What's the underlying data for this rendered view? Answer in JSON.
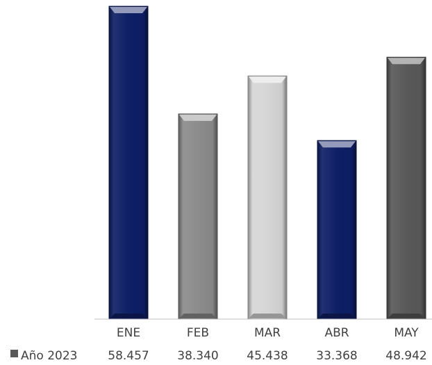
{
  "chart_data": {
    "type": "bar",
    "categories": [
      "ENE",
      "FEB",
      "MAR",
      "ABR",
      "MAY"
    ],
    "series": [
      {
        "name": "Año 2023",
        "values": [
          58457,
          38340,
          45438,
          33368,
          48942
        ],
        "value_labels": [
          "58.457",
          "38.340",
          "45.438",
          "33.368",
          "48.942"
        ]
      }
    ],
    "bar_colors": [
      "#0f1f66",
      "#8c8c8c",
      "#d6d6d6",
      "#0f1f66",
      "#595959"
    ],
    "legend_marker_color": "#595959",
    "ylim": [
      0,
      58457
    ],
    "grid": false,
    "legend": "data-table-left"
  }
}
